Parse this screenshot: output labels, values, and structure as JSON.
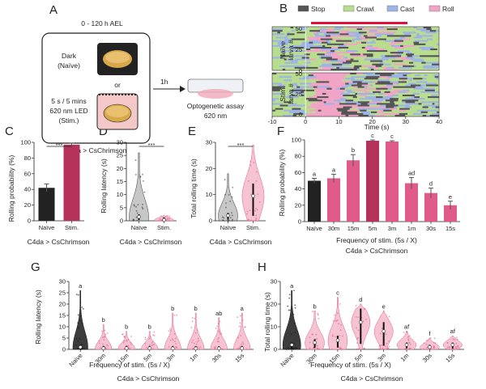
{
  "panel_letters": [
    "A",
    "B",
    "C",
    "D",
    "E",
    "F",
    "G",
    "H"
  ],
  "panelA": {
    "window": "0 - 120 h AEL",
    "dark_label": "Dark",
    "naive_label": "(Naïve)",
    "or_label": "or",
    "led_lines": [
      "5 s / 5 mins",
      "620 nm LED",
      "(Stim.)"
    ],
    "arrow_label": "1h",
    "assay_lines": [
      "Optogenetic assay",
      "620 nm"
    ],
    "genotype": "C4da > CsChrimson"
  },
  "panelB": {
    "legend": [
      {
        "name": "Stop",
        "color": "#555555"
      },
      {
        "name": "Crawl",
        "color": "#b9dd8e"
      },
      {
        "name": "Cast",
        "color": "#9fb4e6"
      },
      {
        "name": "Roll",
        "color": "#f2a4c6"
      }
    ],
    "row_labels": [
      [
        "Naïve",
        "larva #"
      ],
      [
        "Stim.",
        "larva #"
      ]
    ],
    "y_ticks": [
      "50",
      "25",
      "0"
    ],
    "x_ticks": [
      "-10",
      "0",
      "10",
      "20",
      "30",
      "40"
    ],
    "xlabel": "Time (s)",
    "stim_bar_color": "#e0103a"
  },
  "colors": {
    "black": "#222222",
    "dark_red": "#b5335a",
    "pink": "#e05a8a",
    "violin_pink": "#f4b8cb"
  },
  "panelC": {
    "ylabel": "Rolling probability (%)",
    "y_ticks": [
      "0",
      "20",
      "40",
      "60",
      "80",
      "100"
    ],
    "sig": "***",
    "genotype": "C4da > CsChrimson",
    "chart_data": {
      "type": "bar",
      "categories": [
        "Naïve",
        "Stim."
      ],
      "values": [
        42,
        97
      ],
      "errors": [
        5,
        2
      ],
      "ylim": [
        0,
        100
      ]
    }
  },
  "panelD": {
    "ylabel": "Rolling latency (s)",
    "y_ticks": [
      "0",
      "5",
      "10",
      "15",
      "20",
      "25",
      "30"
    ],
    "sig": "***",
    "genotype": "C4da > CsChrimson",
    "chart_data": {
      "type": "violin",
      "categories": [
        "Naïve",
        "Stim."
      ],
      "max": [
        26,
        2
      ],
      "median": [
        1.5,
        0.3
      ],
      "ylim": [
        0,
        30
      ]
    }
  },
  "panelE": {
    "ylabel": "Total rolling time (s)",
    "y_ticks": [
      "0",
      "10",
      "20",
      "30"
    ],
    "sig": "***",
    "genotype": "C4da > CsChrimson",
    "chart_data": {
      "type": "violin",
      "categories": [
        "Naïve",
        "Stim."
      ],
      "max": [
        18,
        29
      ],
      "median": [
        2,
        9.5
      ],
      "ylim": [
        0,
        30
      ]
    }
  },
  "panelF": {
    "ylabel": "Rolling probability (%)",
    "y_ticks": [
      "0",
      "20",
      "40",
      "60",
      "80",
      "100"
    ],
    "xlabel": "Frequency of stim. (5s / X)",
    "genotype": "C4da > CsChrimson",
    "chart_data": {
      "type": "bar",
      "categories": [
        "Naïve",
        "30m",
        "15m",
        "5m",
        "3m",
        "1m",
        "30s",
        "15s"
      ],
      "values": [
        50,
        53,
        75,
        99,
        98,
        47,
        35,
        20
      ],
      "errors": [
        3,
        5,
        7,
        1,
        1,
        7,
        6,
        5
      ],
      "letters": [
        "a",
        "a",
        "b",
        "c",
        "c",
        "ad",
        "d",
        "e"
      ],
      "ylim": [
        0,
        100
      ]
    }
  },
  "panelG": {
    "ylabel": "Rolling latency (s)",
    "y_ticks": [
      "0",
      "5",
      "10",
      "15",
      "20",
      "25",
      "30"
    ],
    "xlabel": "Frequency of stim. (5s / X)",
    "genotype": "C4da > CsChrimson",
    "chart_data": {
      "type": "violin",
      "categories": [
        "Naïve",
        "30m",
        "15m",
        "5m",
        "3m",
        "1m",
        "30s",
        "15s"
      ],
      "max": [
        26,
        11,
        8,
        8,
        16,
        16,
        14,
        16
      ],
      "median": [
        1,
        0.5,
        0.5,
        0.5,
        0.4,
        0.4,
        0.4,
        0.5
      ],
      "letters": [
        "a",
        "b",
        "b",
        "b",
        "b",
        "b",
        "ab",
        "a"
      ],
      "ylim": [
        0,
        30
      ]
    }
  },
  "panelH": {
    "ylabel": "Total rolling time (s)",
    "y_ticks": [
      "0",
      "10",
      "20",
      "30"
    ],
    "xlabel": "Frequency of stim. (5s / X)",
    "genotype": "C4da > CsChrimson",
    "chart_data": {
      "type": "violin",
      "categories": [
        "Naïve",
        "30m",
        "15m",
        "5m",
        "3m",
        "1m",
        "30s",
        "15s"
      ],
      "max": [
        26,
        17,
        23,
        20,
        17,
        8,
        5,
        6
      ],
      "median": [
        2,
        3,
        4,
        12,
        8,
        2,
        1,
        2
      ],
      "letters": [
        "a",
        "b",
        "c",
        "d",
        "e",
        "af",
        "f",
        "af"
      ],
      "ylim": [
        0,
        30
      ]
    }
  }
}
